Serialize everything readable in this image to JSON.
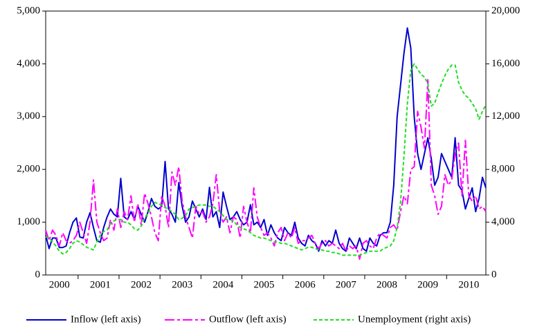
{
  "chart_data": {
    "type": "line",
    "categories": [
      null,
      null,
      null,
      null,
      "2000",
      null,
      null,
      null,
      null,
      null,
      null,
      null,
      null,
      null,
      null,
      null,
      "2001",
      null,
      null,
      null,
      null,
      null,
      null,
      null,
      null,
      null,
      null,
      null,
      "2002",
      null,
      null,
      null,
      null,
      null,
      null,
      null,
      null,
      null,
      null,
      null,
      "2003",
      null,
      null,
      null,
      null,
      null,
      null,
      null,
      null,
      null,
      null,
      null,
      "2004",
      null,
      null,
      null,
      null,
      null,
      null,
      null,
      null,
      null,
      null,
      null,
      "2005",
      null,
      null,
      null,
      null,
      null,
      null,
      null,
      null,
      null,
      null,
      null,
      "2006",
      null,
      null,
      null,
      null,
      null,
      null,
      null,
      null,
      null,
      null,
      null,
      "2007",
      null,
      null,
      null,
      null,
      null,
      null,
      null,
      null,
      null,
      null,
      null,
      "2008",
      null,
      null,
      null,
      null,
      null,
      null,
      null,
      null,
      null,
      null,
      null,
      "2009",
      null,
      null,
      null,
      null,
      null,
      null,
      null,
      null,
      null,
      null,
      null,
      "2010",
      null,
      null,
      null,
      null,
      null
    ],
    "series": [
      {
        "name": "Inflow (left axis)",
        "color": "#0000cc",
        "dash": "none",
        "axis": "y",
        "values": [
          750,
          500,
          700,
          700,
          520,
          520,
          550,
          800,
          1000,
          1080,
          720,
          700,
          1000,
          1180,
          900,
          650,
          620,
          900,
          1100,
          1250,
          1150,
          1100,
          1830,
          1100,
          1050,
          1200,
          1050,
          1300,
          1150,
          1000,
          1200,
          1450,
          1300,
          1250,
          1300,
          2150,
          1250,
          1150,
          1000,
          1750,
          1300,
          1000,
          1100,
          1400,
          1250,
          1100,
          1250,
          1050,
          1660,
          1100,
          1200,
          900,
          1570,
          1300,
          1050,
          1100,
          1200,
          1050,
          950,
          1000,
          1330,
          950,
          1000,
          900,
          1050,
          750,
          950,
          800,
          700,
          650,
          900,
          800,
          750,
          1000,
          700,
          600,
          550,
          750,
          650,
          600,
          450,
          650,
          550,
          650,
          600,
          850,
          600,
          500,
          450,
          700,
          600,
          500,
          700,
          500,
          450,
          700,
          600,
          550,
          750,
          800,
          800,
          1000,
          1700,
          3000,
          3600,
          4200,
          4680,
          4300,
          3000,
          2300,
          2000,
          2300,
          2600,
          2200,
          1700,
          1850,
          2300,
          2150,
          2000,
          1850,
          2600,
          1700,
          1600,
          1250,
          1450,
          1650,
          1200,
          1450,
          1850,
          1650
        ]
      },
      {
        "name": "Outflow (left axis)",
        "color": "#ff00ff",
        "dash": "14 4 4 4",
        "axis": "y",
        "values": [
          850,
          650,
          850,
          750,
          550,
          800,
          650,
          600,
          650,
          750,
          1000,
          800,
          600,
          1000,
          1800,
          1000,
          800,
          650,
          700,
          1050,
          850,
          1250,
          900,
          1200,
          1050,
          1500,
          1000,
          1350,
          950,
          1550,
          1350,
          1100,
          800,
          650,
          1500,
          1300,
          900,
          1950,
          1700,
          2050,
          1400,
          1100,
          900,
          700,
          1300,
          1150,
          1200,
          1000,
          1100,
          1350,
          1900,
          1200,
          1000,
          1100,
          800,
          1100,
          1050,
          700,
          1300,
          1000,
          800,
          1650,
          1100,
          900,
          750,
          800,
          700,
          550,
          800,
          900,
          650,
          800,
          700,
          900,
          600,
          650,
          650,
          700,
          750,
          600,
          500,
          600,
          650,
          550,
          600,
          550,
          500,
          600,
          450,
          550,
          500,
          550,
          300,
          600,
          650,
          550,
          500,
          700,
          800,
          750,
          700,
          900,
          950,
          850,
          1200,
          1500,
          1350,
          2000,
          2050,
          3100,
          2800,
          2400,
          3700,
          1700,
          1500,
          1150,
          1300,
          1900,
          1700,
          1800,
          2300,
          2500,
          1500,
          2550,
          1500,
          1400,
          1500,
          1250,
          1300,
          1200
        ]
      },
      {
        "name": "Unemployment (right axis)",
        "color": "#22dd22",
        "dash": "5 3",
        "axis": "y2",
        "values": [
          2900,
          2800,
          2500,
          2200,
          1800,
          1600,
          1700,
          2000,
          2400,
          2600,
          2500,
          2300,
          2100,
          2000,
          1900,
          2500,
          3000,
          3300,
          3400,
          3900,
          4100,
          4200,
          4200,
          4000,
          4000,
          3800,
          3500,
          3400,
          3700,
          4300,
          4700,
          5200,
          5500,
          5400,
          5300,
          5100,
          5000,
          4800,
          4600,
          4200,
          4300,
          4500,
          5000,
          5100,
          5200,
          5300,
          5300,
          5300,
          5200,
          5200,
          5000,
          4800,
          4500,
          4200,
          4200,
          4100,
          3800,
          3600,
          3500,
          3400,
          3200,
          3000,
          2900,
          2800,
          2800,
          2700,
          2600,
          2500,
          2500,
          2400,
          2400,
          2300,
          2200,
          2100,
          2000,
          1900,
          2000,
          2100,
          2100,
          2000,
          1900,
          1900,
          1800,
          1800,
          1700,
          1700,
          1600,
          1500,
          1500,
          1500,
          1500,
          1500,
          1500,
          1600,
          1700,
          1800,
          1800,
          1800,
          1800,
          2000,
          2100,
          2200,
          2600,
          3600,
          5500,
          9000,
          13000,
          15500,
          16000,
          15600,
          15200,
          15000,
          14500,
          12800,
          13000,
          13800,
          14500,
          15100,
          15600,
          15900,
          15900,
          14600,
          14000,
          13600,
          13400,
          13000,
          12600,
          11800,
          12400,
          12900
        ]
      }
    ],
    "ylim": [
      0,
      5000
    ],
    "yticks": [
      0,
      {
        "value": 1000,
        "label": "1,000"
      },
      {
        "value": 2000,
        "label": "2,000"
      },
      {
        "value": 3000,
        "label": "3,000"
      },
      {
        "value": 4000,
        "label": "4,000"
      },
      {
        "value": 5000,
        "label": "5,000"
      }
    ],
    "y2lim": [
      0,
      20000
    ],
    "y2ticks": [
      0,
      {
        "value": 4000,
        "label": "4,000"
      },
      {
        "value": 8000,
        "label": "8,000"
      },
      {
        "value": 12000,
        "label": "12,000"
      },
      {
        "value": 16000,
        "label": "16,000"
      },
      {
        "value": 20000,
        "label": "20,000"
      }
    ],
    "legend": "bottom"
  }
}
